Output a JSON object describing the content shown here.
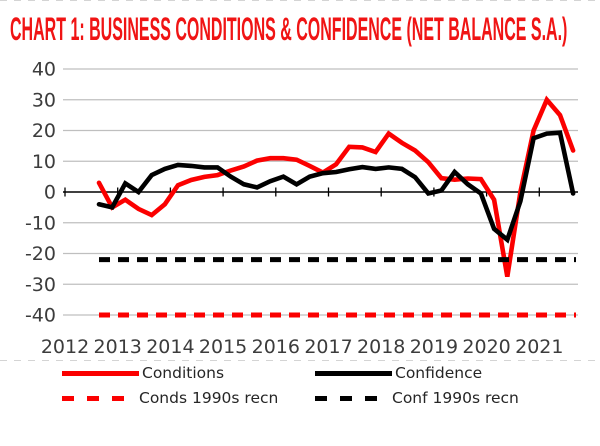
{
  "title": "CHART 1: BUSINESS CONDITIONS & CONFIDENCE (NET BALANCE S.A.)",
  "colors": {
    "series_red": "#fb0000",
    "series_black": "#000000",
    "grid_gray": "#bfbfbf",
    "axis_label_gray": "#3c3c3c",
    "title_red": "#f01414",
    "legend_text": "#262626"
  },
  "legend": [
    {
      "label": "Conditions",
      "color": "series_red",
      "style": "solid"
    },
    {
      "label": "Confidence",
      "color": "series_black",
      "style": "solid"
    },
    {
      "label": "Conds 1990s recn",
      "color": "series_red",
      "style": "dashed"
    },
    {
      "label": "Conf 1990s recn",
      "color": "series_black",
      "style": "dashed"
    }
  ],
  "chart_data": {
    "type": "line",
    "title": "CHART 1: BUSINESS CONDITIONS & CONFIDENCE (NET BALANCE S.A.)",
    "xlabel": "",
    "ylabel": "",
    "grid": true,
    "legend_position": "bottom",
    "ylim": [
      -40,
      40
    ],
    "ytick_step": 10,
    "x_tick_labels": [
      "2012",
      "2013",
      "2014",
      "2015",
      "2016",
      "2017",
      "2018",
      "2019",
      "2020",
      "2021"
    ],
    "x": [
      "2012 Q3",
      "2012 Q4",
      "2013 Q1",
      "2013 Q2",
      "2013 Q3",
      "2013 Q4",
      "2014 Q1",
      "2014 Q2",
      "2014 Q3",
      "2014 Q4",
      "2015 Q1",
      "2015 Q2",
      "2015 Q3",
      "2015 Q4",
      "2016 Q1",
      "2016 Q2",
      "2016 Q3",
      "2016 Q4",
      "2017 Q1",
      "2017 Q2",
      "2017 Q3",
      "2017 Q4",
      "2018 Q1",
      "2018 Q2",
      "2018 Q3",
      "2018 Q4",
      "2019 Q1",
      "2019 Q2",
      "2019 Q3",
      "2019 Q4",
      "2020 Q1",
      "2020 Q2",
      "2020 Q3",
      "2020 Q4",
      "2021 Q1",
      "2021 Q2",
      "2021 Q3"
    ],
    "series": [
      {
        "name": "Conditions",
        "color": "series_red",
        "style": "solid",
        "values": [
          3,
          -5,
          -2.5,
          -5.5,
          -7.5,
          -4,
          2.2,
          3.9,
          4.9,
          5.5,
          7,
          8.3,
          10.2,
          11,
          11,
          10.5,
          8.5,
          6.3,
          9,
          14.7,
          14.5,
          13,
          19,
          16,
          13.5,
          9.7,
          4.5,
          4,
          4.4,
          4.2,
          -2.5,
          -27.5,
          0,
          20,
          30,
          25,
          13.5
        ]
      },
      {
        "name": "Confidence",
        "color": "series_black",
        "style": "solid",
        "values": [
          -4,
          -5,
          2.8,
          0,
          5.5,
          7.5,
          8.8,
          8.5,
          8,
          8,
          5,
          2.5,
          1.5,
          3.5,
          5,
          2.5,
          5,
          6.1,
          6.5,
          7.4,
          8.1,
          7.5,
          8,
          7.5,
          4.8,
          -0.5,
          0.5,
          6.5,
          2.5,
          -0.5,
          -12,
          -15.5,
          -3,
          17.5,
          19,
          19.3,
          -0.5
        ]
      },
      {
        "name": "Conds 1990s recn",
        "color": "series_red",
        "style": "dashed",
        "constant": -40
      },
      {
        "name": "Conf 1990s recn",
        "color": "series_black",
        "style": "dashed",
        "constant": -22
      }
    ]
  }
}
